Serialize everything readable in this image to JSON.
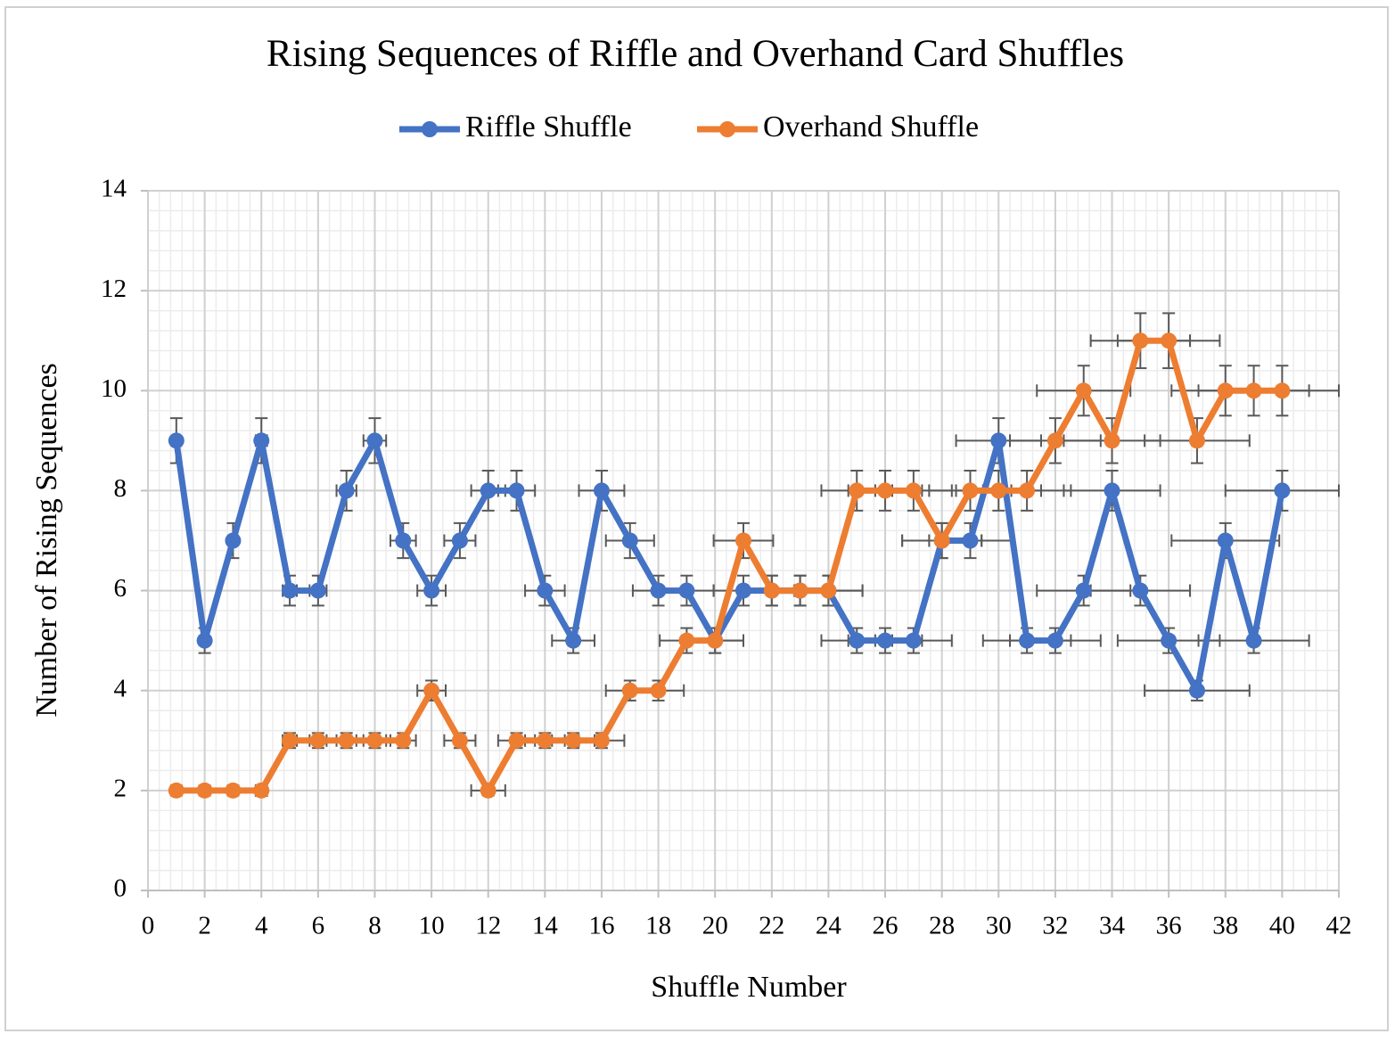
{
  "chart_data": {
    "type": "line",
    "title": "Rising Sequences of Riffle and Overhand Card Shuffles",
    "xlabel": "Shuffle Number",
    "ylabel": "Number of Rising Sequences",
    "x": [
      1,
      2,
      3,
      4,
      5,
      6,
      7,
      8,
      9,
      10,
      11,
      12,
      13,
      14,
      15,
      16,
      17,
      18,
      19,
      20,
      21,
      22,
      23,
      24,
      25,
      26,
      27,
      28,
      29,
      30,
      31,
      32,
      33,
      34,
      35,
      36,
      37,
      38,
      39,
      40
    ],
    "series": [
      {
        "name": "Riffle Shuffle",
        "color": "#4472c4",
        "values": [
          9,
          5,
          7,
          9,
          6,
          6,
          8,
          9,
          7,
          6,
          7,
          8,
          8,
          6,
          5,
          8,
          7,
          6,
          6,
          5,
          6,
          6,
          6,
          6,
          5,
          5,
          5,
          7,
          7,
          9,
          5,
          5,
          6,
          8,
          6,
          5,
          4,
          7,
          5,
          8
        ]
      },
      {
        "name": "Overhand Shuffle",
        "color": "#ed7d31",
        "values": [
          2,
          2,
          2,
          2,
          3,
          3,
          3,
          3,
          3,
          4,
          3,
          2,
          3,
          3,
          3,
          3,
          4,
          4,
          5,
          5,
          7,
          6,
          6,
          6,
          8,
          8,
          8,
          7,
          8,
          8,
          8,
          9,
          10,
          9,
          11,
          11,
          9,
          10,
          10,
          10
        ]
      }
    ],
    "xerr_percent": 5,
    "yerr_percent": 5,
    "xlim": [
      0,
      42
    ],
    "xticks": [
      0,
      2,
      4,
      6,
      8,
      10,
      12,
      14,
      16,
      18,
      20,
      22,
      24,
      26,
      28,
      30,
      32,
      34,
      36,
      38,
      40,
      42
    ],
    "ylim": [
      0,
      14
    ],
    "yticks": [
      0,
      2,
      4,
      6,
      8,
      10,
      12,
      14
    ],
    "grid": true,
    "legend": "top"
  }
}
